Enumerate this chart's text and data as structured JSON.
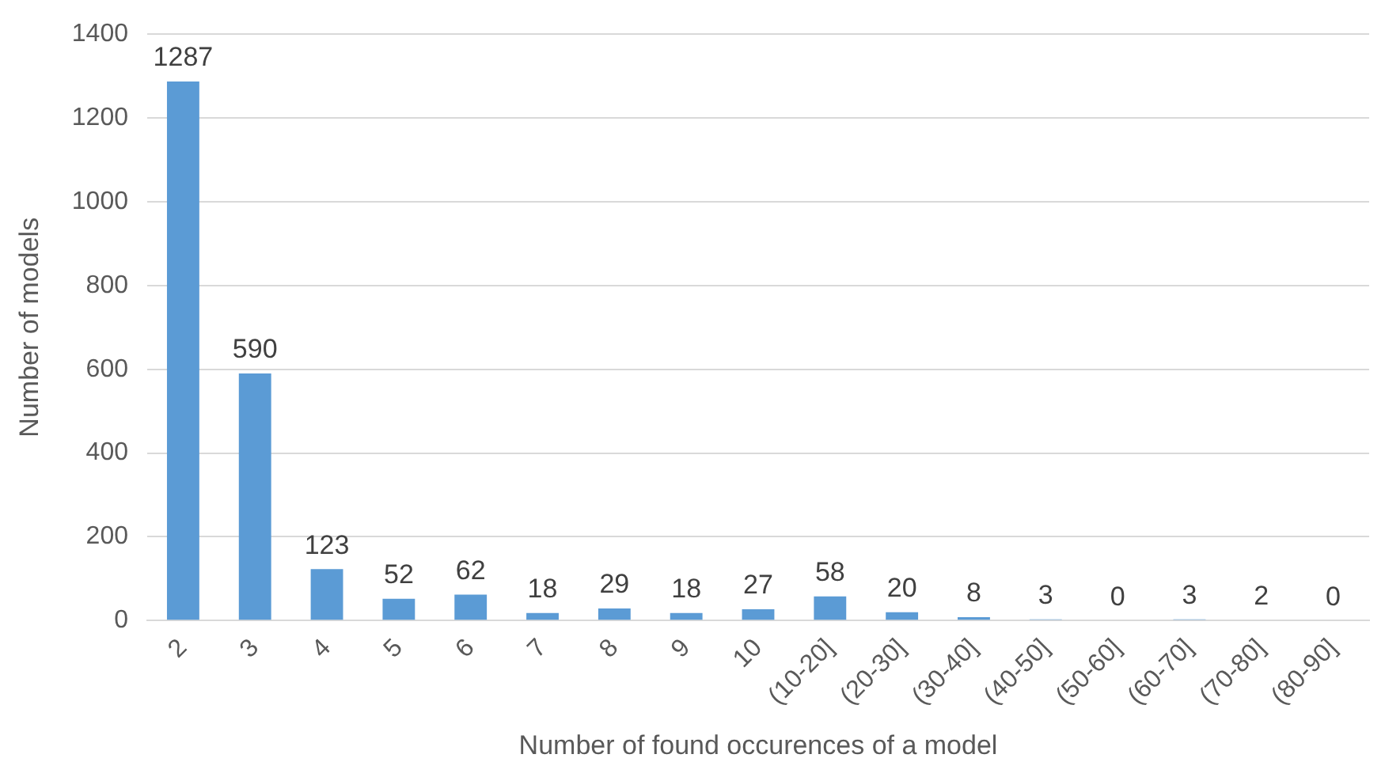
{
  "chart_data": {
    "type": "bar",
    "xlabel": "Number of found occurences of a model",
    "ylabel": "Number of models",
    "categories": [
      "2",
      "3",
      "4",
      "5",
      "6",
      "7",
      "8",
      "9",
      "10",
      "(10-20]",
      "(20-30]",
      "(30-40]",
      "(40-50]",
      "(50-60]",
      "(60-70]",
      "(70-80]",
      "(80-90]"
    ],
    "values": [
      1287,
      590,
      123,
      52,
      62,
      18,
      29,
      18,
      27,
      58,
      20,
      8,
      3,
      0,
      3,
      2,
      0
    ],
    "color": "#5b9bd5",
    "ylim": [
      0,
      1400
    ],
    "yticks": [
      0,
      200,
      400,
      600,
      800,
      1000,
      1200,
      1400
    ],
    "grid": "y",
    "legend": false,
    "data_labels": true
  }
}
